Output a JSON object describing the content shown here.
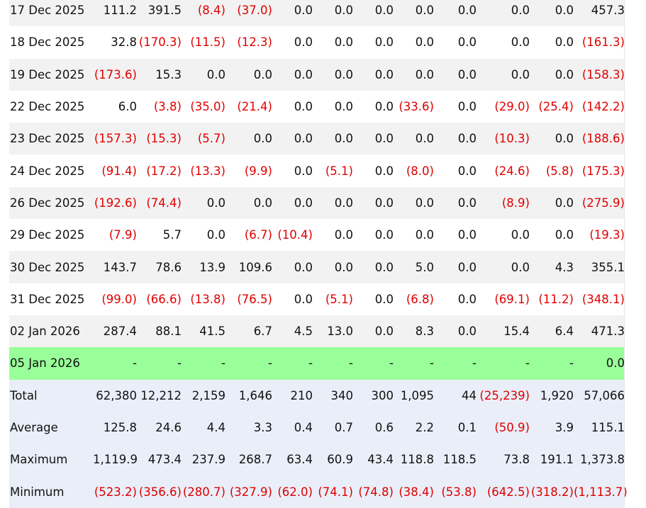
{
  "rows": [
    {
      "label": "17 Dec 2025",
      "values": [
        "111.2",
        "391.5",
        "(8.4)",
        "(37.0)",
        "0.0",
        "0.0",
        "0.0",
        "0.0",
        "0.0",
        "0.0",
        "0.0",
        "457.3"
      ]
    },
    {
      "label": "18 Dec 2025",
      "values": [
        "32.8",
        "(170.3)",
        "(11.5)",
        "(12.3)",
        "0.0",
        "0.0",
        "0.0",
        "0.0",
        "0.0",
        "0.0",
        "0.0",
        "(161.3)"
      ]
    },
    {
      "label": "19 Dec 2025",
      "values": [
        "(173.6)",
        "15.3",
        "0.0",
        "0.0",
        "0.0",
        "0.0",
        "0.0",
        "0.0",
        "0.0",
        "0.0",
        "0.0",
        "(158.3)"
      ]
    },
    {
      "label": "22 Dec 2025",
      "values": [
        "6.0",
        "(3.8)",
        "(35.0)",
        "(21.4)",
        "0.0",
        "0.0",
        "0.0",
        "(33.6)",
        "0.0",
        "(29.0)",
        "(25.4)",
        "(142.2)"
      ]
    },
    {
      "label": "23 Dec 2025",
      "values": [
        "(157.3)",
        "(15.3)",
        "(5.7)",
        "0.0",
        "0.0",
        "0.0",
        "0.0",
        "0.0",
        "0.0",
        "(10.3)",
        "0.0",
        "(188.6)"
      ]
    },
    {
      "label": "24 Dec 2025",
      "values": [
        "(91.4)",
        "(17.2)",
        "(13.3)",
        "(9.9)",
        "0.0",
        "(5.1)",
        "0.0",
        "(8.0)",
        "0.0",
        "(24.6)",
        "(5.8)",
        "(175.3)"
      ]
    },
    {
      "label": "26 Dec 2025",
      "values": [
        "(192.6)",
        "(74.4)",
        "0.0",
        "0.0",
        "0.0",
        "0.0",
        "0.0",
        "0.0",
        "0.0",
        "(8.9)",
        "0.0",
        "(275.9)"
      ]
    },
    {
      "label": "29 Dec 2025",
      "values": [
        "(7.9)",
        "5.7",
        "0.0",
        "(6.7)",
        "(10.4)",
        "0.0",
        "0.0",
        "0.0",
        "0.0",
        "0.0",
        "0.0",
        "(19.3)"
      ]
    },
    {
      "label": "30 Dec 2025",
      "values": [
        "143.7",
        "78.6",
        "13.9",
        "109.6",
        "0.0",
        "0.0",
        "0.0",
        "5.0",
        "0.0",
        "0.0",
        "4.3",
        "355.1"
      ]
    },
    {
      "label": "31 Dec 2025",
      "values": [
        "(99.0)",
        "(66.6)",
        "(13.8)",
        "(76.5)",
        "0.0",
        "(5.1)",
        "0.0",
        "(6.8)",
        "0.0",
        "(69.1)",
        "(11.2)",
        "(348.1)"
      ]
    },
    {
      "label": "02 Jan 2026",
      "values": [
        "287.4",
        "88.1",
        "41.5",
        "6.7",
        "4.5",
        "13.0",
        "0.0",
        "8.3",
        "0.0",
        "15.4",
        "6.4",
        "471.3"
      ]
    },
    {
      "label": "05 Jan 2026",
      "highlight": true,
      "values": [
        "-",
        "-",
        "-",
        "-",
        "-",
        "-",
        "-",
        "-",
        "-",
        "-",
        "-",
        "0.0"
      ]
    }
  ],
  "summary": [
    {
      "label": "Total",
      "values": [
        "62,380",
        "12,212",
        "2,159",
        "1,646",
        "210",
        "340",
        "300",
        "1,095",
        "44",
        "(25,239)",
        "1,920",
        "57,066"
      ]
    },
    {
      "label": "Average",
      "values": [
        "125.8",
        "24.6",
        "4.4",
        "3.3",
        "0.4",
        "0.7",
        "0.6",
        "2.2",
        "0.1",
        "(50.9)",
        "3.9",
        "115.1"
      ]
    },
    {
      "label": "Maximum",
      "values": [
        "1,119.9",
        "473.4",
        "237.9",
        "268.7",
        "63.4",
        "60.9",
        "43.4",
        "118.8",
        "118.5",
        "73.8",
        "191.1",
        "1,373.8"
      ]
    },
    {
      "label": "Minimum",
      "values": [
        "(523.2)",
        "(356.6)",
        "(280.7)",
        "(327.9)",
        "(62.0)",
        "(74.1)",
        "(74.8)",
        "(38.4)",
        "(53.8)",
        "(642.5)",
        "(318.2)",
        "(1,113.7)"
      ]
    }
  ],
  "colors": {
    "negative": "#e00000",
    "highlight_row": "#99ff99",
    "summary_bg": "#e9eef8",
    "stripe": "#f2f2f2"
  }
}
